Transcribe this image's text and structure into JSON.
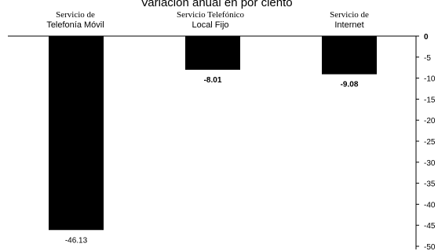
{
  "chart_data": {
    "type": "bar",
    "title": "Variación anual en por ciento",
    "categories": [
      {
        "line1": "Servicio de",
        "line2": "Telefonía Móvil"
      },
      {
        "line1": "Servicio Telefónico",
        "line2": "Local Fijo"
      },
      {
        "line1": "Servicio de",
        "line2": "Internet"
      }
    ],
    "values": [
      -46.13,
      -8.01,
      -9.08
    ],
    "value_labels": [
      "-46.13",
      "-8.01",
      "-9.08"
    ],
    "ylim": [
      -50,
      0
    ],
    "y_ticks": [
      "0",
      "-5",
      "-10",
      "-15",
      "-20",
      "-25",
      "-30",
      "-35",
      "-40",
      "-45",
      "-50"
    ],
    "y_axis_position": "right",
    "grid": false,
    "bar_color": "#000000"
  }
}
